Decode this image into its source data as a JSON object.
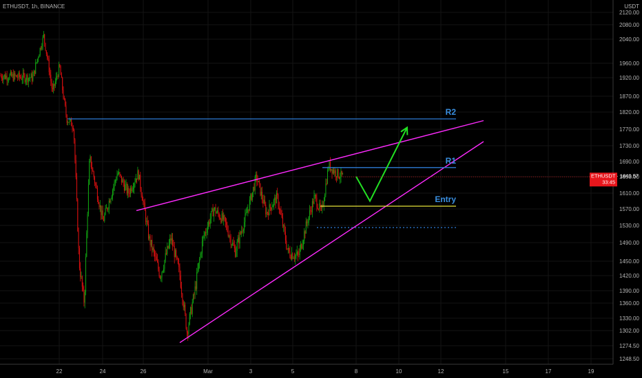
{
  "header": {
    "symbol": "ETHUSDT, 1h, BINANCE",
    "currency": "USDT"
  },
  "price_badge": {
    "label": "ETHUSDT · 1649.57",
    "sub": "33:45",
    "color": "#e8161c"
  },
  "colors": {
    "up": "#12a812",
    "down": "#e01010",
    "trend": "#ff2bff",
    "level": "#2e7bd6",
    "entry": "#e6e23a",
    "arrow": "#22e022"
  },
  "chart_data": {
    "type": "candlestick",
    "title": "",
    "xlabel": "",
    "ylabel": "",
    "y_axis_ticks": [
      2120.0,
      2080.0,
      2040.0,
      1960.0,
      1920.0,
      1870.0,
      1820.0,
      1770.0,
      1730.0,
      1690.0,
      1650.0,
      1610.0,
      1570.0,
      1530.0,
      1490.0,
      1450.0,
      1420.0,
      1390.0,
      1360.0,
      1330.0,
      1302.0,
      1274.5,
      1248.5
    ],
    "x_axis_ticks": [
      "22",
      "24",
      "26",
      "Mar",
      "3",
      "5",
      "8",
      "10",
      "12",
      "15",
      "17",
      "19"
    ],
    "levels": [
      {
        "name": "R2",
        "price": 1800
      },
      {
        "name": "R1",
        "price": 1674
      },
      {
        "name": "Entry",
        "price": 1577
      }
    ],
    "stop_line": {
      "price": 1525
    },
    "price_path": [
      [
        "Feb 21",
        1920
      ],
      [
        "Feb 21",
        2050
      ],
      [
        "Feb 22",
        1880
      ],
      [
        "Feb 22",
        1950
      ],
      [
        "Feb 22",
        1800
      ],
      [
        "Feb 23",
        1780
      ],
      [
        "Feb 23",
        1450
      ],
      [
        "Feb 23",
        1360
      ],
      [
        "Feb 23",
        1700
      ],
      [
        "Feb 24",
        1540
      ],
      [
        "Feb 25",
        1660
      ],
      [
        "Feb 25",
        1610
      ],
      [
        "Feb 26",
        1660
      ],
      [
        "Feb 26",
        1500
      ],
      [
        "Feb 27",
        1420
      ],
      [
        "Feb 27",
        1500
      ],
      [
        "Feb 28",
        1420
      ],
      [
        "Feb 28",
        1300
      ],
      [
        "Feb 28",
        1380
      ],
      [
        "Mar 1",
        1500
      ],
      [
        "Mar 1",
        1570
      ],
      [
        "Mar 2",
        1540
      ],
      [
        "Mar 2",
        1470
      ],
      [
        "Mar 3",
        1550
      ],
      [
        "Mar 3",
        1650
      ],
      [
        "Mar 4",
        1560
      ],
      [
        "Mar 4",
        1600
      ],
      [
        "Mar 5",
        1470
      ],
      [
        "Mar 5",
        1460
      ],
      [
        "Mar 6",
        1540
      ],
      [
        "Mar 6",
        1600
      ],
      [
        "Mar 6",
        1560
      ],
      [
        "Mar 7",
        1680
      ],
      [
        "Mar 7",
        1660
      ],
      [
        "Mar 7",
        1649.57
      ]
    ],
    "trendlines": [
      {
        "from": [
          "Feb 26",
          1566
        ],
        "to": [
          "Mar 14",
          1795
        ]
      },
      {
        "from": [
          "Feb 28",
          1280
        ],
        "to": [
          "Mar 14",
          1740
        ]
      }
    ],
    "projection": [
      [
        "Mar 7",
        1650
      ],
      [
        "Mar 8",
        1590
      ],
      [
        "Mar 10",
        1775
      ]
    ],
    "last_price": 1649.57
  }
}
